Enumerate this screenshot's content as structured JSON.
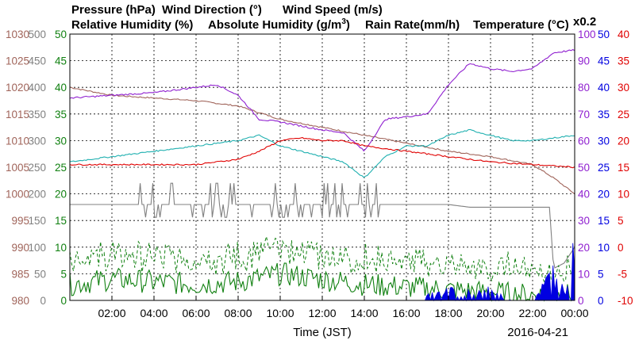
{
  "chart_data": {
    "type": "line",
    "date": "2016-04-21",
    "xlabel": "Time (JST)",
    "x_ticks": [
      "02:00",
      "04:00",
      "06:00",
      "08:00",
      "10:00",
      "12:00",
      "14:00",
      "16:00",
      "18:00",
      "20:00",
      "22:00",
      "00:00"
    ],
    "x_range_hours": [
      0,
      24
    ],
    "grid": true,
    "legend": [
      {
        "label": "Pressure (hPa)",
        "color": "#a0645a"
      },
      {
        "label": "Wind Direction (°)",
        "color": "#808080"
      },
      {
        "label": "Wind Speed (m/s)",
        "color": "#108010"
      },
      {
        "label": "Relative Humidity (%)",
        "color": "#9020d0"
      },
      {
        "label": "Absolute Humidity (g/m",
        "sup": "3",
        "close": ")",
        "color": "#20b0b0"
      },
      {
        "label": "Rain Rate(mm/h)",
        "color": "#0000e0"
      },
      {
        "label": "Temperature (°C)",
        "color": "#e00000"
      },
      {
        "label": "x0.2",
        "color": "#20b0b0"
      }
    ],
    "axes": {
      "pressure": {
        "color": "#a0645a",
        "ticks": [
          980,
          985,
          990,
          995,
          1000,
          1005,
          1010,
          1015,
          1020,
          1025,
          1030
        ],
        "range": [
          980,
          1030
        ]
      },
      "wind_direction": {
        "color": "#808080",
        "ticks": [
          0,
          50,
          100,
          150,
          200,
          250,
          300,
          350,
          400,
          450,
          500
        ],
        "range": [
          0,
          500
        ]
      },
      "wind_speed": {
        "color": "#108010",
        "ticks": [
          0,
          5,
          10,
          15,
          20,
          25,
          30,
          35,
          40,
          45,
          50
        ],
        "range": [
          0,
          50
        ]
      },
      "humidity": {
        "color": "#9020d0",
        "ticks": [
          0,
          10,
          20,
          30,
          40,
          50,
          60,
          70,
          80,
          90,
          100
        ],
        "range": [
          0,
          100
        ]
      },
      "rain_rate": {
        "color": "#0000e0",
        "ticks": [
          0,
          5,
          10,
          15,
          20,
          25,
          30,
          35,
          40,
          45,
          50
        ],
        "range": [
          0,
          50
        ]
      },
      "temperature": {
        "color": "#e00000",
        "ticks": [
          -10,
          -5,
          0,
          5,
          10,
          15,
          20,
          25,
          30,
          35,
          40
        ],
        "range": [
          -10,
          40
        ]
      }
    },
    "series": [
      {
        "name": "Pressure (hPa)",
        "axis": "pressure",
        "x": [
          0,
          2,
          4,
          6,
          8,
          10,
          12,
          14,
          16,
          18,
          20,
          22,
          23,
          24
        ],
        "values": [
          1020,
          1018.5,
          1018,
          1017.5,
          1016.5,
          1014,
          1012.5,
          1011,
          1009.5,
          1008,
          1007,
          1005.5,
          1003,
          1000
        ]
      },
      {
        "name": "Wind Direction (°)",
        "axis": "wind_direction",
        "x": [
          0,
          1,
          2,
          3,
          4,
          5,
          6,
          7,
          8,
          9,
          10,
          11,
          12,
          13,
          14,
          15,
          16,
          17,
          18,
          19,
          20,
          21,
          22,
          22.8,
          23,
          23.5,
          24
        ],
        "values": [
          180,
          180,
          180,
          180,
          180,
          180,
          180,
          180,
          180,
          180,
          180,
          180,
          180,
          180,
          180,
          180,
          180,
          180,
          180,
          175,
          175,
          175,
          175,
          175,
          60,
          70,
          100
        ]
      },
      {
        "name": "Wind Speed (m/s)",
        "axis": "wind_speed",
        "x": [
          0,
          2,
          4,
          6,
          8,
          10,
          12,
          14,
          16,
          18,
          20,
          22,
          24
        ],
        "values": [
          3,
          4,
          3.5,
          3,
          3.5,
          5,
          4,
          3,
          2.5,
          2,
          1.5,
          1,
          1
        ]
      },
      {
        "name": "Relative Humidity (%)",
        "axis": "humidity",
        "x": [
          0,
          2,
          4,
          6,
          7,
          8,
          9,
          10,
          12,
          13,
          14,
          15,
          16,
          17,
          18,
          19,
          20,
          21,
          22,
          23,
          24
        ],
        "values": [
          76,
          77,
          78,
          80,
          81,
          77,
          68,
          67,
          64,
          63,
          56,
          68,
          69,
          70,
          81,
          89,
          87,
          86,
          87,
          93,
          94
        ]
      },
      {
        "name": "Absolute Humidity",
        "axis": "wind_speed",
        "x": [
          0,
          2,
          4,
          6,
          8,
          9,
          10,
          12,
          13,
          14,
          15,
          16,
          17,
          18,
          19,
          20,
          21,
          22,
          23,
          24
        ],
        "values": [
          26,
          27,
          28,
          29,
          30,
          31,
          29,
          27,
          26,
          23,
          27,
          29,
          29,
          31,
          32,
          31,
          30,
          30,
          30.5,
          31
        ]
      },
      {
        "name": "Rain Rate(mm/h)",
        "axis": "rain_rate",
        "x": [
          0,
          16.5,
          17,
          18,
          19,
          20,
          21,
          22,
          22.5,
          23,
          23.5,
          24
        ],
        "values": [
          0,
          0,
          1,
          2,
          2,
          2,
          0,
          0,
          3,
          6,
          2,
          10
        ]
      },
      {
        "name": "Temperature (°C)",
        "axis": "temperature",
        "x": [
          0,
          2,
          4,
          6,
          8,
          9,
          10,
          11,
          12,
          13,
          14,
          16,
          18,
          20,
          22,
          24
        ],
        "values": [
          15.5,
          15.5,
          15.5,
          15.5,
          16.5,
          18,
          20,
          20.5,
          20,
          20,
          19,
          18,
          17,
          16,
          15.5,
          15
        ]
      }
    ]
  }
}
